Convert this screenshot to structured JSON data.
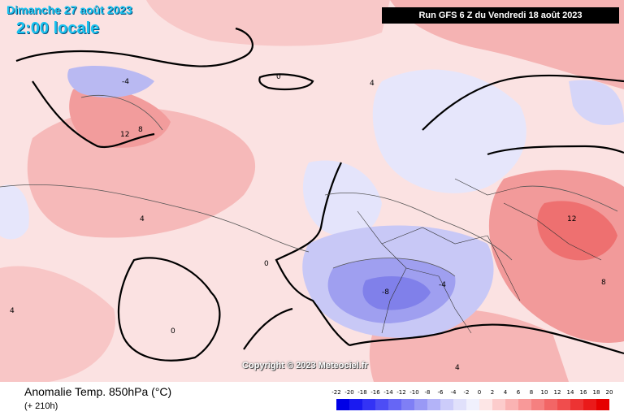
{
  "header": {
    "date_text": "Dimanche 27 août 2023",
    "time_text": "2:00 locale",
    "run_text": "Run GFS 6 Z du Vendredi 18 août 2023"
  },
  "map": {
    "copyright": "Copyright © 2023 Meteociel.fr",
    "contour_labels": [
      "0",
      "4",
      "8",
      "12",
      "-4",
      "-8"
    ]
  },
  "footer": {
    "title": "Anomalie Temp. 850hPa (°C)",
    "subtitle": "(+ 210h)"
  },
  "legend": {
    "ticks": [
      "-22",
      "-20",
      "-18",
      "-16",
      "-14",
      "-12",
      "-10",
      "-8",
      "-6",
      "-4",
      "-2",
      "0",
      "2",
      "4",
      "6",
      "8",
      "10",
      "12",
      "14",
      "16",
      "18",
      "20"
    ],
    "colors": [
      "#0000e6",
      "#1a1af0",
      "#3333f5",
      "#4d4df5",
      "#6666f5",
      "#7f7ff5",
      "#9999f5",
      "#b3b3f8",
      "#ccccfa",
      "#e0e0fb",
      "#f0f0fd",
      "#fde6e6",
      "#fccccc",
      "#fab3b3",
      "#f89999",
      "#f58080",
      "#f26666",
      "#f04d4d",
      "#ed3333",
      "#ea1a1a",
      "#e60000"
    ],
    "accent_colors": {
      "date_text": "#19c3f0",
      "run_box": "#000000"
    }
  }
}
